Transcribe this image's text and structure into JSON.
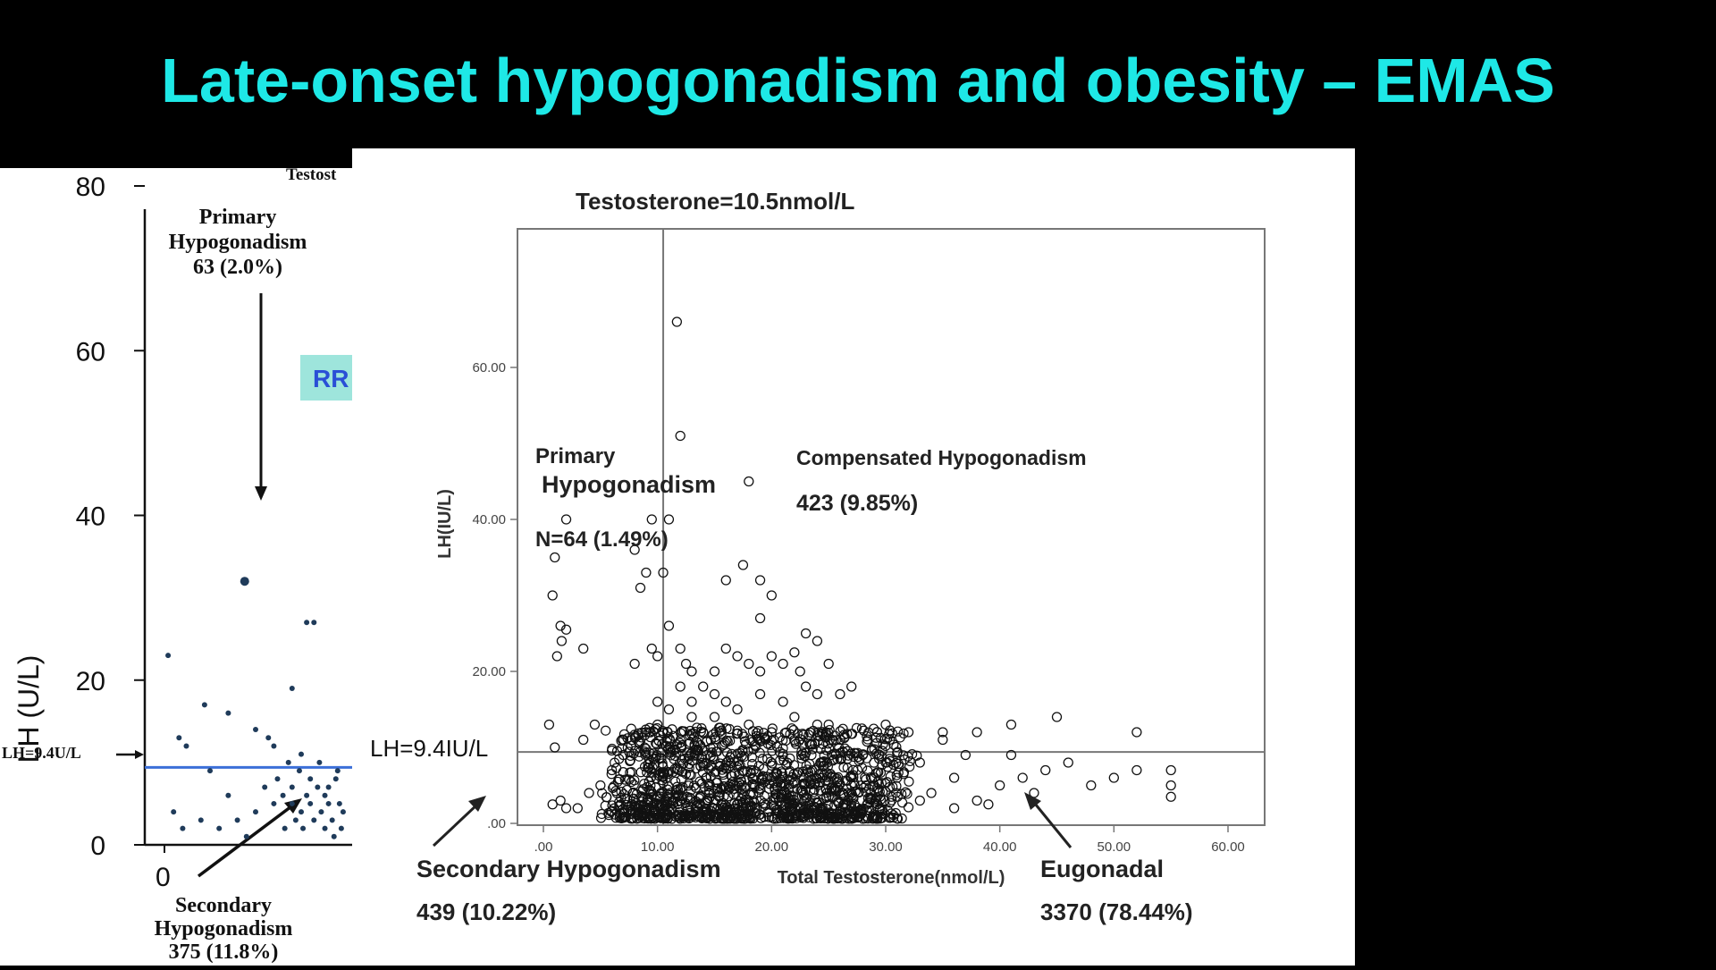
{
  "slide": {
    "title": "Late-onset hypogonadism and obesity – EMAS"
  },
  "chart_data": [
    {
      "type": "scatter",
      "header_fragment": "Testost",
      "badge": "RR",
      "xlabel": "",
      "ylabel": "LH (U/L)",
      "x_ticks": [
        "0"
      ],
      "y_ticks": [
        0,
        20,
        40,
        60,
        80
      ],
      "ylim": [
        0,
        80
      ],
      "threshold_label": "LH=9.4U/L",
      "threshold_lh": 9.4,
      "threshold_color": "#3b6fd8",
      "point_color": "#1f3b5a",
      "annotations": {
        "primary": [
          "Primary",
          "Hypogonadism",
          "63 (2.0%)"
        ],
        "secondary": [
          "Secondary",
          "Hypogonadism",
          "375 (11.8%)"
        ]
      },
      "points": [
        [
          0.02,
          23
        ],
        [
          0.08,
          13
        ],
        [
          0.12,
          12
        ],
        [
          0.22,
          17
        ],
        [
          0.35,
          16
        ],
        [
          0.44,
          32
        ],
        [
          0.5,
          14
        ],
        [
          0.6,
          12
        ],
        [
          0.57,
          13
        ],
        [
          0.7,
          19
        ],
        [
          0.78,
          27
        ],
        [
          0.82,
          27
        ],
        [
          0.75,
          11
        ],
        [
          0.05,
          4
        ],
        [
          0.1,
          2
        ],
        [
          0.3,
          2
        ],
        [
          0.2,
          3
        ],
        [
          0.4,
          3
        ],
        [
          0.5,
          4
        ],
        [
          0.6,
          5
        ],
        [
          0.65,
          6
        ],
        [
          0.7,
          7
        ],
        [
          0.72,
          3
        ],
        [
          0.75,
          4
        ],
        [
          0.78,
          6
        ],
        [
          0.8,
          5
        ],
        [
          0.82,
          3
        ],
        [
          0.84,
          7
        ],
        [
          0.86,
          4
        ],
        [
          0.88,
          6
        ],
        [
          0.9,
          5
        ],
        [
          0.92,
          3
        ],
        [
          0.94,
          8
        ],
        [
          0.96,
          5
        ],
        [
          0.98,
          4
        ],
        [
          0.66,
          2
        ],
        [
          0.7,
          5
        ],
        [
          0.74,
          9
        ],
        [
          0.8,
          8
        ],
        [
          0.85,
          10
        ],
        [
          0.9,
          7
        ],
        [
          0.95,
          9
        ],
        [
          0.62,
          8
        ],
        [
          0.68,
          10
        ],
        [
          0.76,
          2
        ],
        [
          0.88,
          2
        ],
        [
          0.93,
          1
        ],
        [
          0.97,
          2
        ],
        [
          0.55,
          7
        ],
        [
          0.45,
          1
        ],
        [
          0.35,
          6
        ],
        [
          0.25,
          9
        ]
      ]
    },
    {
      "type": "scatter",
      "title": "Testosterone=10.5nmol/L",
      "xlabel": "Total Testosterone(nmol/L)",
      "ylabel": "LH(IU/L)",
      "xlim": [
        0,
        60
      ],
      "ylim": [
        0,
        60
      ],
      "x_ticks": [
        ".00",
        "10.00",
        "20.00",
        "30.00",
        "40.00",
        "50.00",
        "60.00"
      ],
      "y_ticks": [
        ".00",
        "20.00",
        "40.00",
        "60.00"
      ],
      "threshold_testosterone": 10.5,
      "threshold_lh": 9.4,
      "threshold_label": "LH=9.4IU/L",
      "quadrants": {
        "primary": {
          "line1": "Primary",
          "line2": "Hypogonadism",
          "count": "N=64 (1.49%)"
        },
        "compensated": {
          "name": "Compensated Hypogonadism",
          "count": "423 (9.85%)"
        },
        "secondary": {
          "name": "Secondary Hypogonadism",
          "count": "439 (10.22%)"
        },
        "eugonadal": {
          "name": "Eugonadal",
          "count": "3370 (78.44%)"
        }
      },
      "outliers": [
        [
          2,
          40
        ],
        [
          1,
          35
        ],
        [
          0.8,
          30
        ],
        [
          1.5,
          26
        ],
        [
          2,
          25.5
        ],
        [
          1.6,
          24
        ],
        [
          1.2,
          22
        ],
        [
          3.5,
          23
        ],
        [
          0.5,
          13
        ],
        [
          1,
          10
        ],
        [
          1.5,
          3
        ],
        [
          0.8,
          2.5
        ],
        [
          2,
          2
        ],
        [
          8,
          36
        ],
        [
          9,
          33
        ],
        [
          8.5,
          31
        ],
        [
          9.5,
          40
        ],
        [
          11,
          40
        ],
        [
          10.5,
          33
        ],
        [
          11,
          26
        ],
        [
          8,
          21
        ],
        [
          9.5,
          23
        ],
        [
          10,
          22
        ],
        [
          12,
          51
        ],
        [
          11.7,
          66
        ],
        [
          12,
          23
        ],
        [
          12.5,
          21
        ],
        [
          15,
          20
        ],
        [
          16,
          23
        ],
        [
          17,
          22
        ],
        [
          18,
          21
        ],
        [
          19,
          20
        ],
        [
          20,
          22
        ],
        [
          21,
          21
        ],
        [
          22,
          22.5
        ],
        [
          23,
          25
        ],
        [
          24,
          24
        ],
        [
          25,
          21
        ],
        [
          27,
          18
        ],
        [
          22.5,
          20
        ],
        [
          17.5,
          34
        ],
        [
          16,
          32
        ],
        [
          19,
          32
        ],
        [
          20,
          30
        ],
        [
          19,
          27
        ],
        [
          23,
          18
        ],
        [
          24,
          17
        ],
        [
          26,
          17
        ],
        [
          18,
          45
        ],
        [
          13,
          16
        ],
        [
          15,
          14
        ],
        [
          14,
          18
        ],
        [
          10,
          16
        ],
        [
          11,
          15
        ],
        [
          30,
          13
        ],
        [
          32,
          12
        ],
        [
          35,
          12
        ],
        [
          38,
          12
        ],
        [
          41,
          13
        ],
        [
          45,
          14
        ],
        [
          52,
          12
        ],
        [
          35,
          11
        ],
        [
          37,
          9
        ],
        [
          41,
          9
        ],
        [
          42,
          6
        ],
        [
          44,
          7
        ],
        [
          46,
          8
        ],
        [
          48,
          5
        ],
        [
          50,
          6
        ],
        [
          52,
          7
        ],
        [
          55,
          7
        ],
        [
          55,
          5
        ],
        [
          55,
          3.5
        ],
        [
          33,
          8
        ],
        [
          31,
          6
        ],
        [
          29,
          5
        ],
        [
          27,
          4
        ],
        [
          34,
          4
        ],
        [
          36,
          6
        ],
        [
          38,
          3
        ],
        [
          40,
          5
        ],
        [
          43,
          4
        ],
        [
          4,
          4
        ],
        [
          5,
          5
        ],
        [
          3,
          2
        ],
        [
          6,
          7
        ],
        [
          7,
          9
        ],
        [
          4.5,
          13
        ],
        [
          3.5,
          11
        ],
        [
          33,
          3
        ],
        [
          36,
          2
        ],
        [
          39,
          2.5
        ],
        [
          28,
          9
        ],
        [
          30,
          8
        ],
        [
          26,
          11
        ],
        [
          25,
          13
        ],
        [
          20,
          12
        ],
        [
          18,
          13
        ],
        [
          17,
          15
        ],
        [
          13,
          14
        ],
        [
          14,
          12
        ],
        [
          10,
          13
        ],
        [
          9,
          12
        ],
        [
          22,
          14
        ],
        [
          24,
          13
        ],
        [
          21,
          16
        ],
        [
          19,
          17
        ],
        [
          16,
          16
        ],
        [
          15,
          17
        ],
        [
          12,
          18
        ],
        [
          13,
          20
        ]
      ]
    }
  ]
}
